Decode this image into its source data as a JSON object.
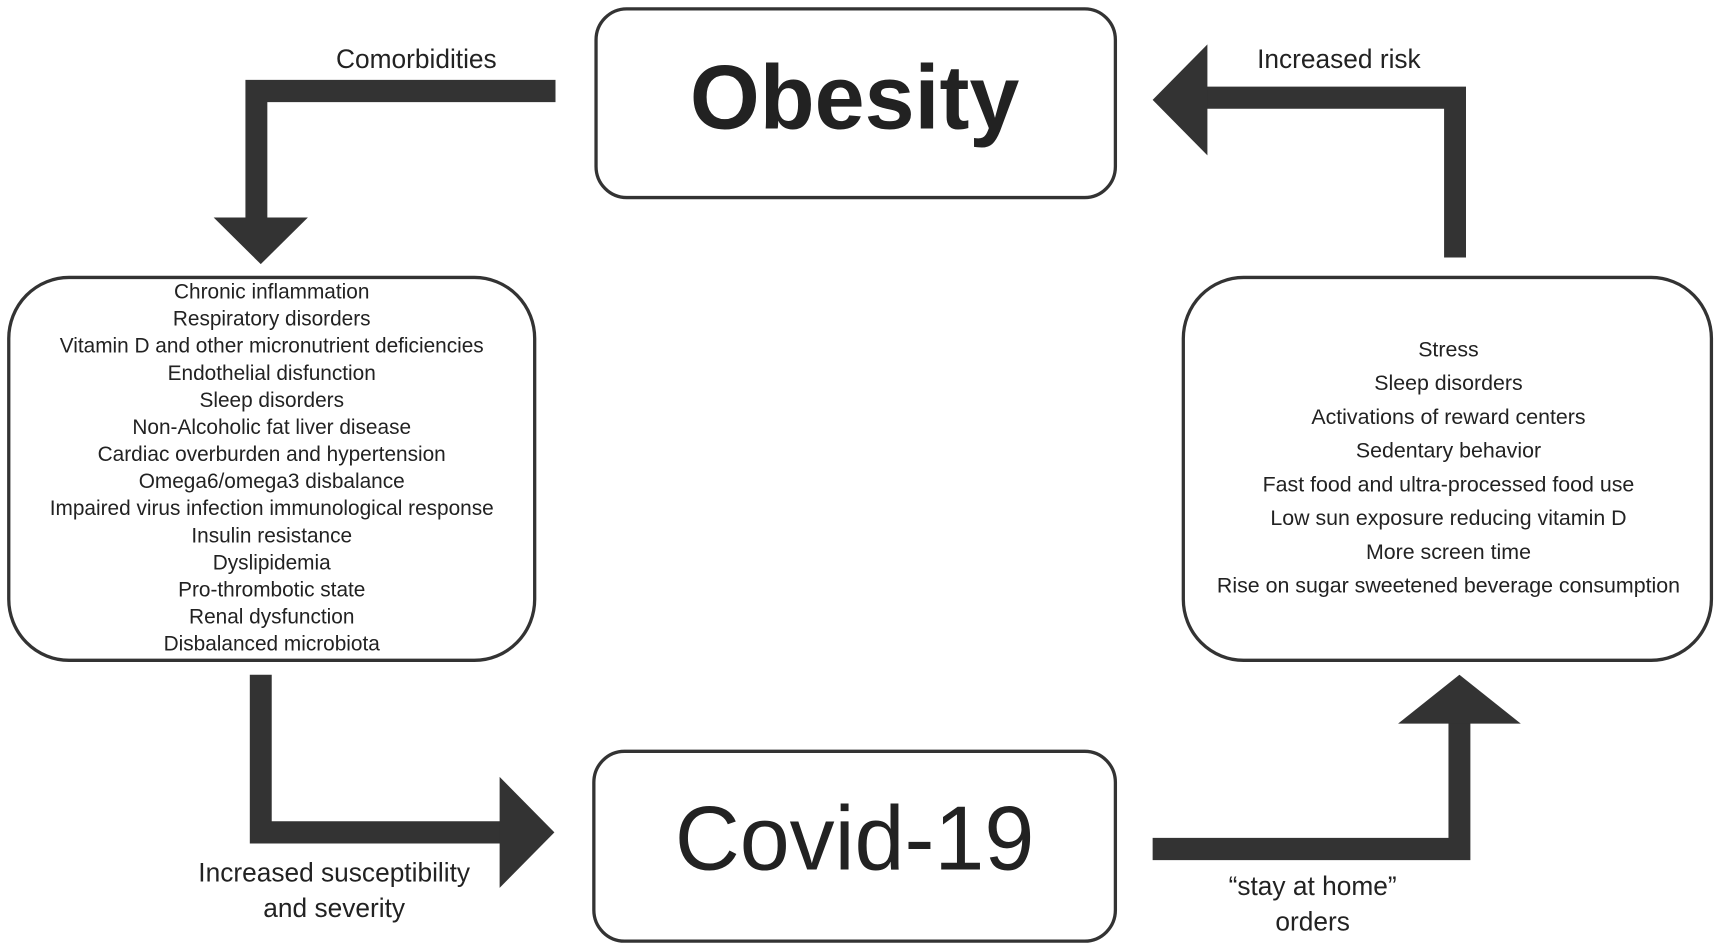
{
  "nodes": [
    {
      "label": "Obesity"
    },
    {
      "label": "Covid-19"
    },
    {
      "items": [
        "Chronic inflammation",
        "Respiratory disorders",
        "Vitamin D and other micronutrient deficiencies",
        "Endothelial disfunction",
        "Sleep disorders",
        "Non-Alcoholic fat liver disease",
        "Cardiac overburden and hypertension",
        "Omega6/omega3 disbalance",
        "Impaired virus infection immunological response",
        "Insulin resistance",
        "Dyslipidemia",
        "Pro-thrombotic state",
        "Renal dysfunction",
        "Disbalanced microbiota"
      ]
    },
    {
      "items": [
        "Stress",
        "Sleep disorders",
        "Activations of reward centers",
        "Sedentary behavior",
        "Fast food and ultra-processed food use",
        "Low sun exposure reducing vitamin D",
        "More screen time",
        "Rise on sugar sweetened beverage consumption"
      ]
    }
  ],
  "edges": [
    {
      "label": [
        "Comorbidities"
      ]
    },
    {
      "label": [
        "Increased susceptibility",
        "and severity"
      ]
    },
    {
      "label": [
        "“stay at home”",
        "orders"
      ]
    },
    {
      "label": [
        "Increased risk"
      ]
    }
  ]
}
